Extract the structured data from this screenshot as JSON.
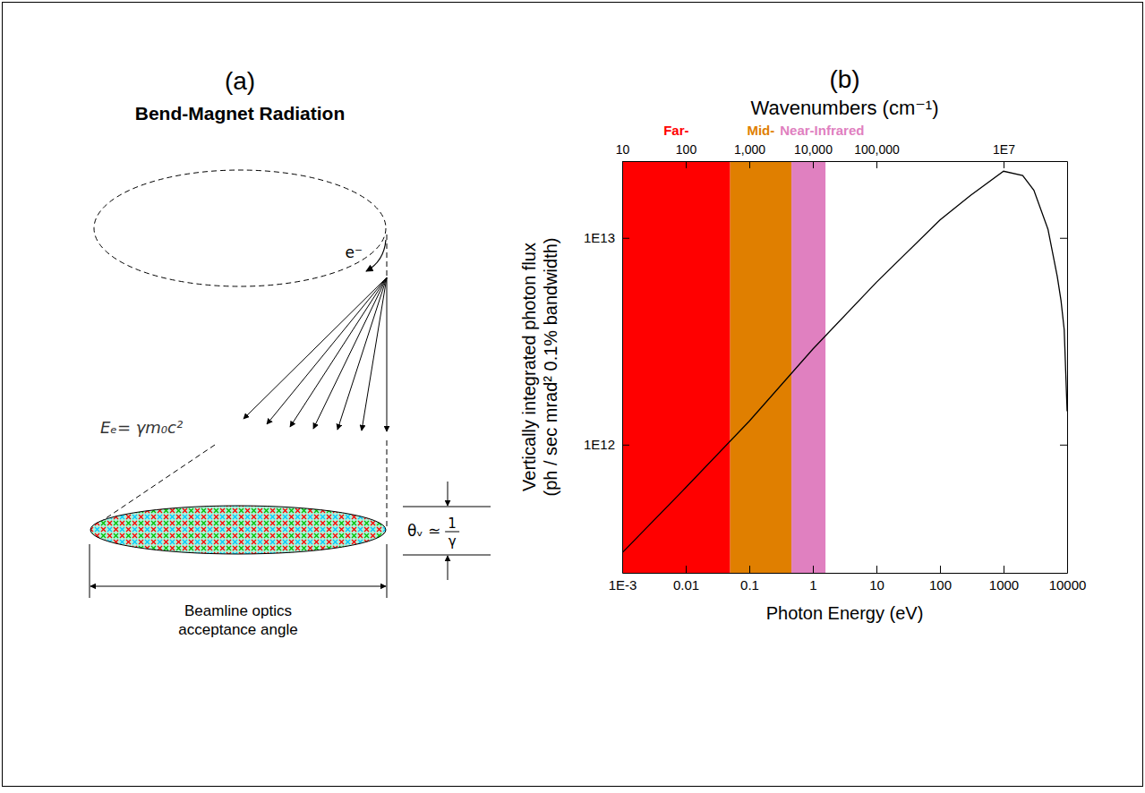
{
  "panel_a": {
    "title": "(a)",
    "heading": "Bend-Magnet Radiation",
    "electron": "e⁻",
    "energy": "Eₑ= γm₀c²",
    "theta": {
      "symbol": "θᵥ ≃",
      "numerator": "1",
      "denominator": "γ"
    },
    "acceptance": "Beamline optics acceptance angle"
  },
  "chart_data": {
    "type": "line",
    "title": "(b)",
    "log": true,
    "grid": false,
    "xlabel": "Photon Energy (eV)",
    "ylabel": [
      "Vertically integrated photon flux",
      "(ph / sec mrad² 0.1% bandwidth)"
    ],
    "x2label": "Wavenumbers (cm⁻¹)",
    "xlim": [
      0.001,
      10000
    ],
    "xticks": [
      {
        "value": 0.001,
        "label": "1E-3"
      },
      0.01,
      0.1,
      1,
      10,
      100,
      1000,
      10000
    ],
    "x2lim": [
      10,
      100000000
    ],
    "x2ticks": [
      10,
      100,
      {
        "value": 1000,
        "label": "1,000"
      },
      {
        "value": 10000,
        "label": "10,000"
      },
      {
        "value": 100000,
        "label": "100,000"
      },
      {
        "value": 10000000,
        "label": "1E7"
      }
    ],
    "ylim": [
      240000000000.0,
      23500000000000.0
    ],
    "yticks": [
      {
        "value": 1000000000000.0,
        "label": "1E12"
      },
      {
        "value": 10000000000000.0,
        "label": "1E13"
      }
    ],
    "bands": [
      {
        "label": "Far-",
        "from": 0.001,
        "to": 0.05,
        "color": "#ff0000"
      },
      {
        "label": "Mid-",
        "from": 0.05,
        "to": 0.46,
        "color": "#e07f00"
      },
      {
        "label": "Near-Infrared",
        "from": 0.46,
        "to": 1.58,
        "color": "#e080c0"
      }
    ],
    "color": "#000000",
    "x": [
      0.001,
      0.01,
      0.1,
      1,
      10,
      100,
      300,
      1000,
      2000,
      3000,
      5000,
      7000,
      8000,
      9000,
      10000
    ],
    "values": [
      300000000000.0,
      620000000000.0,
      1300000000000.0,
      2900000000000.0,
      6100000000000.0,
      12200000000000.0,
      16000000000000.0,
      21000000000000.0,
      20000000000000.0,
      17000000000000.0,
      11000000000000.0,
      6500000000000.0,
      5000000000000.0,
      3600000000000.0,
      1450000000000.0
    ]
  }
}
